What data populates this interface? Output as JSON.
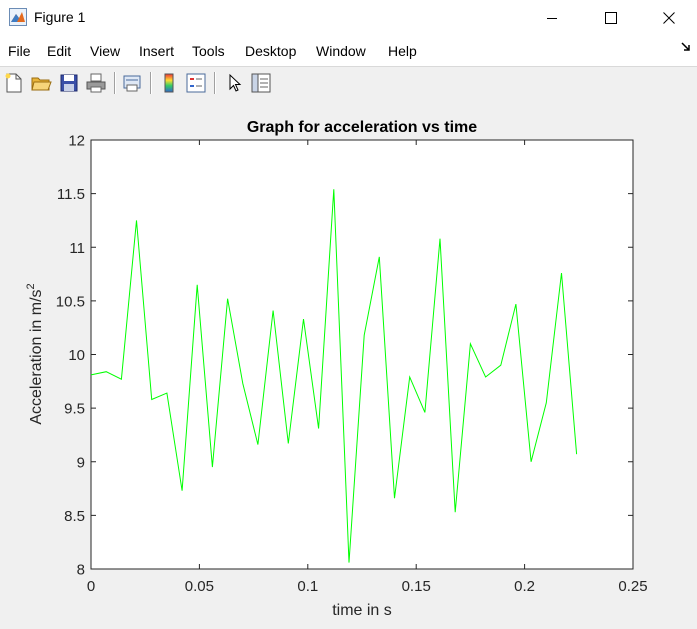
{
  "window": {
    "title": "Figure 1"
  },
  "menu": [
    "File",
    "Edit",
    "View",
    "Insert",
    "Tools",
    "Desktop",
    "Window",
    "Help"
  ],
  "toolbar": {
    "icons": [
      "new-figure-icon",
      "open-file-icon",
      "save-icon",
      "print-icon",
      "print-preview-icon",
      "colorbar-icon",
      "legend-icon",
      "pointer-icon",
      "property-editor-icon"
    ]
  },
  "colors": {
    "line": "#00ff00",
    "axes_bg": "#ffffff",
    "figure_bg": "#f0f0f0"
  },
  "chart_data": {
    "type": "line",
    "title": "Graph for acceleration vs time",
    "xlabel": "time in s",
    "ylabel": "Acceleration in m/s",
    "ylabel_superscript": "2",
    "xlim": [
      0,
      0.25
    ],
    "ylim": [
      8,
      12
    ],
    "xticks": [
      "0",
      "0.05",
      "0.1",
      "0.15",
      "0.2",
      "0.25"
    ],
    "yticks": [
      "8",
      "8.5",
      "9",
      "9.5",
      "10",
      "10.5",
      "11",
      "11.5",
      "12"
    ],
    "grid": false,
    "series": [
      {
        "color": "#00ff00",
        "x": [
          0,
          0.007,
          0.014,
          0.021,
          0.028,
          0.035,
          0.042,
          0.049,
          0.056,
          0.063,
          0.07,
          0.077,
          0.084,
          0.091,
          0.098,
          0.105,
          0.112,
          0.119,
          0.126,
          0.133,
          0.14,
          0.147,
          0.154,
          0.161,
          0.168,
          0.175,
          0.182,
          0.189,
          0.196,
          0.203,
          0.21,
          0.217,
          0.224
        ],
        "y": [
          9.81,
          9.84,
          9.77,
          11.25,
          9.58,
          9.64,
          8.73,
          10.65,
          8.95,
          10.52,
          9.73,
          9.16,
          10.41,
          9.17,
          10.33,
          9.31,
          11.54,
          8.06,
          10.18,
          10.91,
          8.66,
          9.79,
          9.46,
          11.08,
          8.53,
          10.1,
          9.79,
          9.9,
          10.47,
          9.0,
          9.55,
          10.76,
          9.07
        ]
      }
    ]
  }
}
